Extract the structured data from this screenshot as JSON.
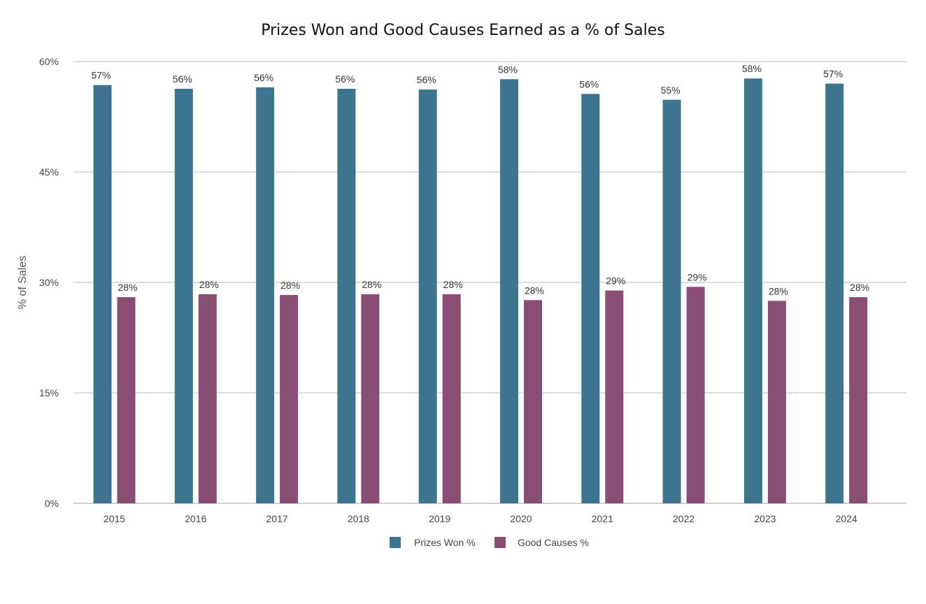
{
  "chart_data": {
    "type": "bar",
    "title": "Prizes Won and Good Causes Earned as a % of Sales",
    "xlabel": "",
    "ylabel": "% of Sales",
    "ylim": [
      0,
      60
    ],
    "yticks": [
      "0%",
      "15%",
      "30%",
      "45%",
      "60%"
    ],
    "ytick_values": [
      0,
      15,
      30,
      45,
      60
    ],
    "categories": [
      "2015",
      "2016",
      "2017",
      "2018",
      "2019",
      "2020",
      "2021",
      "2022",
      "2023",
      "2024"
    ],
    "series": [
      {
        "name": "Prizes Won %",
        "color": "#3d7591",
        "values": [
          56.8,
          56.3,
          56.5,
          56.3,
          56.2,
          57.6,
          55.6,
          54.8,
          57.7,
          57.0
        ],
        "labels": [
          "57%",
          "56%",
          "56%",
          "56%",
          "56%",
          "58%",
          "56%",
          "55%",
          "58%",
          "57%"
        ]
      },
      {
        "name": "Good Causes %",
        "color": "#8a4d73",
        "values": [
          28.0,
          28.4,
          28.3,
          28.4,
          28.4,
          27.6,
          28.9,
          29.4,
          27.5,
          28.0
        ],
        "labels": [
          "28%",
          "28%",
          "28%",
          "28%",
          "28%",
          "28%",
          "29%",
          "29%",
          "28%",
          "28%"
        ]
      }
    ],
    "grid": true,
    "legend": "bottom-center"
  }
}
